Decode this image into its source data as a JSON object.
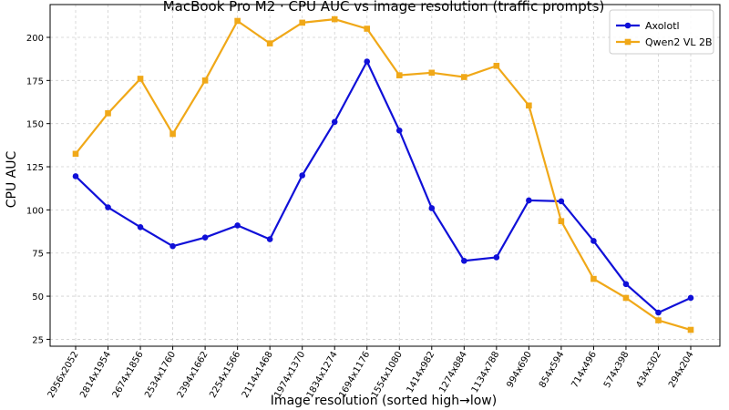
{
  "chart_data": {
    "type": "line",
    "title": "MacBook Pro M2 · CPU AUC vs image resolution (traffic prompts)",
    "xlabel": "Image resolution (sorted high→low)",
    "ylabel": "CPU AUC",
    "categories": [
      "2956x2052",
      "2814x1954",
      "2674x1856",
      "2534x1760",
      "2394x1662",
      "2254x1566",
      "2114x1468",
      "1974x1370",
      "1834x1274",
      "1694x1176",
      "1554x1080",
      "1414x982",
      "1274x884",
      "1134x788",
      "994x690",
      "854x594",
      "714x496",
      "574x398",
      "434x302",
      "294x204"
    ],
    "yticks": [
      25,
      50,
      75,
      100,
      125,
      150,
      175,
      200
    ],
    "ylim": [
      21,
      219
    ],
    "grid": true,
    "legend_position": "top-right",
    "series": [
      {
        "name": "Axolotl",
        "color": "#1010d8",
        "marker": "circle",
        "values": [
          119.5,
          101.5,
          90,
          79,
          84,
          91,
          83,
          120,
          151,
          186,
          146,
          101,
          70.5,
          72.5,
          105.5,
          105,
          82,
          57,
          40.5,
          49
        ]
      },
      {
        "name": "Qwen2 VL 2B",
        "color": "#f0a818",
        "marker": "square",
        "values": [
          132.5,
          156,
          176,
          144,
          175,
          209.5,
          196.5,
          208.5,
          210.5,
          205,
          178,
          179.5,
          177,
          183.5,
          160.5,
          93.5,
          60,
          49,
          36,
          30.5
        ]
      }
    ]
  }
}
